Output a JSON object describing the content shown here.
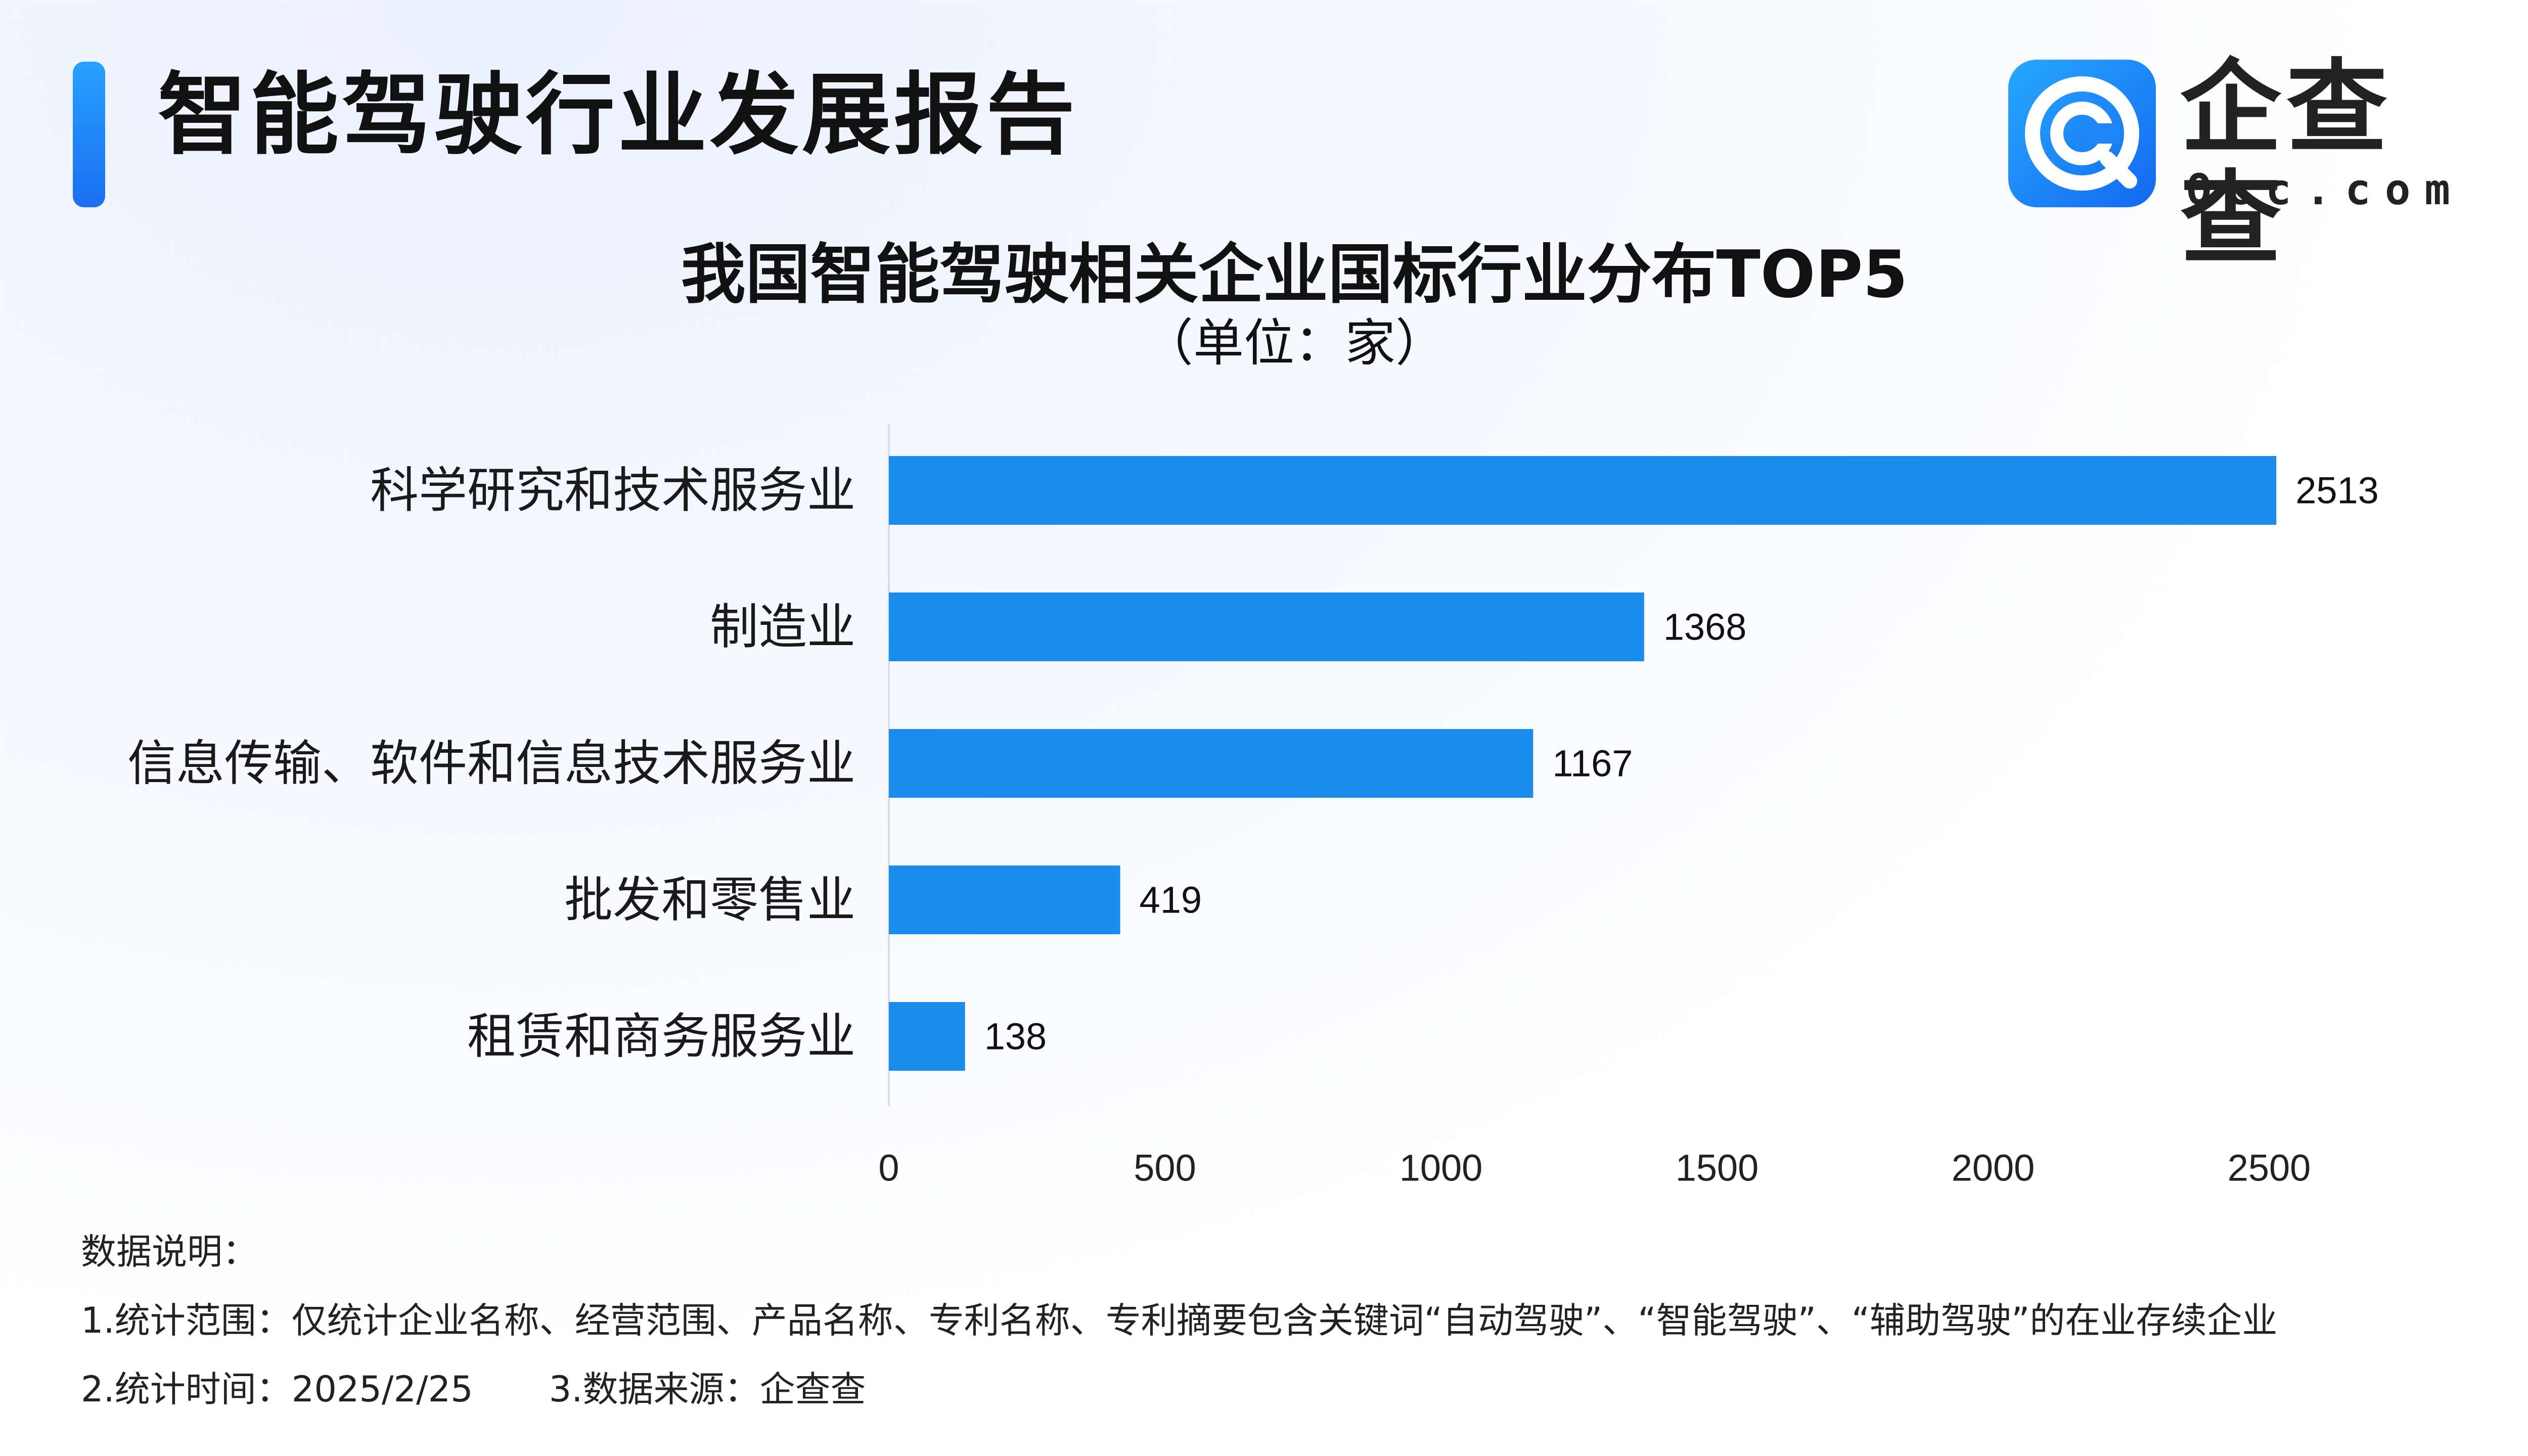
{
  "header": {
    "title": "智能驾驶行业发展报告",
    "logo_name": "企查查",
    "logo_sub": "Qcc.com"
  },
  "chart_data": {
    "type": "bar",
    "orientation": "horizontal",
    "title": "我国智能驾驶相关企业国标行业分布TOP5",
    "subtitle": "（单位：家）",
    "categories": [
      "科学研究和技术服务业",
      "制造业",
      "信息传输、软件和信息技术服务业",
      "批发和零售业",
      "租赁和商务服务业"
    ],
    "values": [
      2513,
      1368,
      1167,
      419,
      138
    ],
    "xlim": [
      0,
      2500
    ],
    "xticks": [
      0,
      500,
      1000,
      1500,
      2000,
      2500
    ],
    "grid": false,
    "bar_color": "#1b8ceb"
  },
  "notes": {
    "heading": "数据说明：",
    "line1": "1.统计范围：仅统计企业名称、经营范围、产品名称、专利名称、专利摘要包含关键词“自动驾驶”、“智能驾驶”、“辅助驾驶”的在业存续企业",
    "line2a": "2.统计时间：2025/2/25",
    "line2b": "3.数据来源：企查查"
  }
}
